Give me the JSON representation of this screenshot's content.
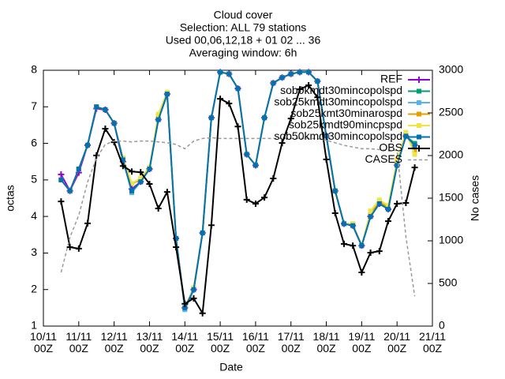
{
  "chart_data": {
    "type": "line",
    "title": "Cloud cover",
    "subtitle": [
      "Selection: ALL     79 stations",
      "Used 00,06,12,18 + 01 02 ... 36",
      "Averaging window:  6h"
    ],
    "xlabel": "Date",
    "ylabel": "octas",
    "y2label": "No cases",
    "x": [
      "10/11 12Z",
      "10/11 18Z",
      "11/11 00Z",
      "11/11 06Z",
      "11/11 12Z",
      "11/11 18Z",
      "12/11 00Z",
      "12/11 06Z",
      "12/11 12Z",
      "12/11 18Z",
      "13/11 00Z",
      "13/11 06Z",
      "13/11 12Z",
      "13/11 18Z",
      "14/11 00Z",
      "14/11 06Z",
      "14/11 12Z",
      "14/11 18Z",
      "15/11 00Z",
      "15/11 06Z",
      "15/11 12Z",
      "15/11 18Z",
      "16/11 00Z",
      "16/11 06Z",
      "16/11 12Z",
      "16/11 18Z",
      "17/11 00Z",
      "17/11 06Z",
      "17/11 12Z",
      "17/11 18Z",
      "18/11 00Z",
      "18/11 06Z",
      "18/11 12Z",
      "18/11 18Z",
      "19/11 00Z",
      "19/11 06Z",
      "19/11 12Z",
      "19/11 18Z",
      "20/11 00Z",
      "20/11 06Z",
      "20/11 12Z"
    ],
    "xlim": [
      "10/11 00Z",
      "21/11 00Z"
    ],
    "xticks": [
      {
        "value": "10/11 00Z",
        "label": "10/11\n00Z"
      },
      {
        "value": "11/11 00Z",
        "label": "11/11\n00Z"
      },
      {
        "value": "12/11 00Z",
        "label": "12/11\n00Z"
      },
      {
        "value": "13/11 00Z",
        "label": "13/11\n00Z"
      },
      {
        "value": "14/11 00Z",
        "label": "14/11\n00Z"
      },
      {
        "value": "15/11 00Z",
        "label": "15/11\n00Z"
      },
      {
        "value": "16/11 00Z",
        "label": "16/11\n00Z"
      },
      {
        "value": "17/11 00Z",
        "label": "17/11\n00Z"
      },
      {
        "value": "18/11 00Z",
        "label": "18/11\n00Z"
      },
      {
        "value": "19/11 00Z",
        "label": "19/11\n00Z"
      },
      {
        "value": "20/11 00Z",
        "label": "20/11\n00Z"
      },
      {
        "value": "21/11 00Z",
        "label": "21/11\n00Z"
      }
    ],
    "ylim": [
      1,
      8
    ],
    "yticks": [
      1,
      2,
      3,
      4,
      5,
      6,
      7,
      8
    ],
    "y2lim": [
      0,
      3000
    ],
    "y2ticks": [
      0,
      500,
      1000,
      1500,
      2000,
      2500,
      3000
    ],
    "legend": "top-right",
    "grid": false,
    "series": [
      {
        "name": "REF",
        "color": "#9400d3",
        "marker": "plus",
        "values": [
          5.15,
          4.7,
          5.2,
          5.95,
          6.95,
          6.92,
          6.55,
          5.5,
          4.75,
          4.95,
          5.3,
          6.65,
          7.35,
          3.4,
          1.5,
          2.0,
          3.55,
          6.7,
          7.95,
          7.9,
          7.5,
          5.7,
          5.4,
          6.7,
          7.65,
          7.8,
          7.9,
          7.95,
          7.95,
          7.7,
          6.2,
          4.7,
          3.8,
          3.75,
          3.2,
          4.0,
          4.35,
          4.2,
          5.4,
          6.2,
          5.95
        ]
      },
      {
        "name": "sob0kmdt30mincopolspd",
        "color": "#009e73",
        "marker": "square",
        "values": [
          5.0,
          4.7,
          5.3,
          5.95,
          7.0,
          6.92,
          6.55,
          5.55,
          4.7,
          4.95,
          5.3,
          6.65,
          7.35,
          3.4,
          1.5,
          2.0,
          3.55,
          6.7,
          7.95,
          7.9,
          7.5,
          5.7,
          5.4,
          6.7,
          7.65,
          7.8,
          7.9,
          7.95,
          7.95,
          7.7,
          6.2,
          4.7,
          3.8,
          3.75,
          3.2,
          4.0,
          4.35,
          4.2,
          5.4,
          6.2,
          6.0
        ]
      },
      {
        "name": "sob25kmdt30mincopolspd",
        "color": "#56b4e9",
        "marker": "square",
        "values": [
          5.0,
          4.7,
          5.3,
          5.95,
          7.0,
          6.92,
          6.55,
          5.55,
          4.65,
          4.95,
          5.3,
          6.65,
          7.35,
          3.4,
          1.45,
          2.0,
          3.55,
          6.7,
          7.95,
          7.9,
          7.5,
          5.7,
          5.4,
          6.7,
          7.65,
          7.8,
          7.9,
          7.95,
          7.95,
          7.7,
          6.2,
          4.7,
          3.8,
          3.75,
          3.2,
          4.0,
          4.35,
          4.2,
          5.4,
          6.2,
          5.95
        ]
      },
      {
        "name": "sob25kmt30minarospd",
        "color": "#e69f00",
        "marker": "square",
        "values": [
          5.0,
          4.7,
          5.3,
          5.95,
          7.0,
          6.92,
          6.55,
          5.6,
          4.9,
          5.0,
          5.3,
          6.75,
          7.35,
          3.4,
          1.5,
          2.05,
          3.55,
          6.7,
          7.95,
          7.9,
          7.5,
          5.7,
          5.4,
          6.7,
          7.65,
          7.8,
          7.9,
          7.95,
          7.95,
          7.7,
          6.2,
          4.7,
          3.8,
          3.8,
          3.2,
          4.1,
          4.4,
          4.25,
          5.5,
          6.25,
          5.8
        ]
      },
      {
        "name": "sob25kmdt90mincpspd",
        "color": "#f0e442",
        "marker": "square",
        "values": [
          5.0,
          4.7,
          5.3,
          5.95,
          7.0,
          6.92,
          6.55,
          5.6,
          4.9,
          5.05,
          5.35,
          6.8,
          7.4,
          3.4,
          1.5,
          2.05,
          3.55,
          6.7,
          7.95,
          7.9,
          7.5,
          5.7,
          5.4,
          6.7,
          7.65,
          7.8,
          7.9,
          7.95,
          7.95,
          7.7,
          6.2,
          4.7,
          3.8,
          3.8,
          3.2,
          4.15,
          4.45,
          4.3,
          5.55,
          6.3,
          5.7
        ]
      },
      {
        "name": "sob50kmdt30mincopolspd",
        "color": "#0072b2",
        "marker": "square",
        "values": [
          5.0,
          4.7,
          5.3,
          5.95,
          7.0,
          6.92,
          6.55,
          5.55,
          4.7,
          4.95,
          5.3,
          6.65,
          7.35,
          3.4,
          1.5,
          2.0,
          3.55,
          6.7,
          7.95,
          7.9,
          7.5,
          5.7,
          5.4,
          6.7,
          7.65,
          7.8,
          7.9,
          7.95,
          7.95,
          7.7,
          6.2,
          4.7,
          3.8,
          3.75,
          3.2,
          4.0,
          4.35,
          4.2,
          5.4,
          6.2,
          5.95
        ]
      },
      {
        "name": "OBS",
        "color": "#000000",
        "marker": "plus",
        "values": [
          4.41,
          3.16,
          3.12,
          3.81,
          5.67,
          6.4,
          6.03,
          5.38,
          5.23,
          5.21,
          4.89,
          4.22,
          4.67,
          3.16,
          1.61,
          1.76,
          1.35,
          3.76,
          7.22,
          7.09,
          6.46,
          4.46,
          4.35,
          4.52,
          5.04,
          6.01,
          6.68,
          7.48,
          7.59,
          7.26,
          5.56,
          4.09,
          3.25,
          3.2,
          2.47,
          3.01,
          3.05,
          3.87,
          4.35,
          4.37,
          5.34
        ]
      },
      {
        "name": "CASES",
        "color": "#999999",
        "dashed": true,
        "axis": "y2",
        "values": [
          630,
          1040,
          1300,
          1690,
          1970,
          2130,
          2170,
          2170,
          2160,
          2170,
          2170,
          2160,
          2150,
          2130,
          2080,
          2170,
          2200,
          2210,
          2200,
          2200,
          2200,
          2200,
          2200,
          2200,
          2200,
          2200,
          2200,
          2200,
          2200,
          2200,
          2180,
          2150,
          2120,
          2100,
          2080,
          2080,
          2070,
          2060,
          2060,
          1050,
          350
        ]
      }
    ]
  }
}
